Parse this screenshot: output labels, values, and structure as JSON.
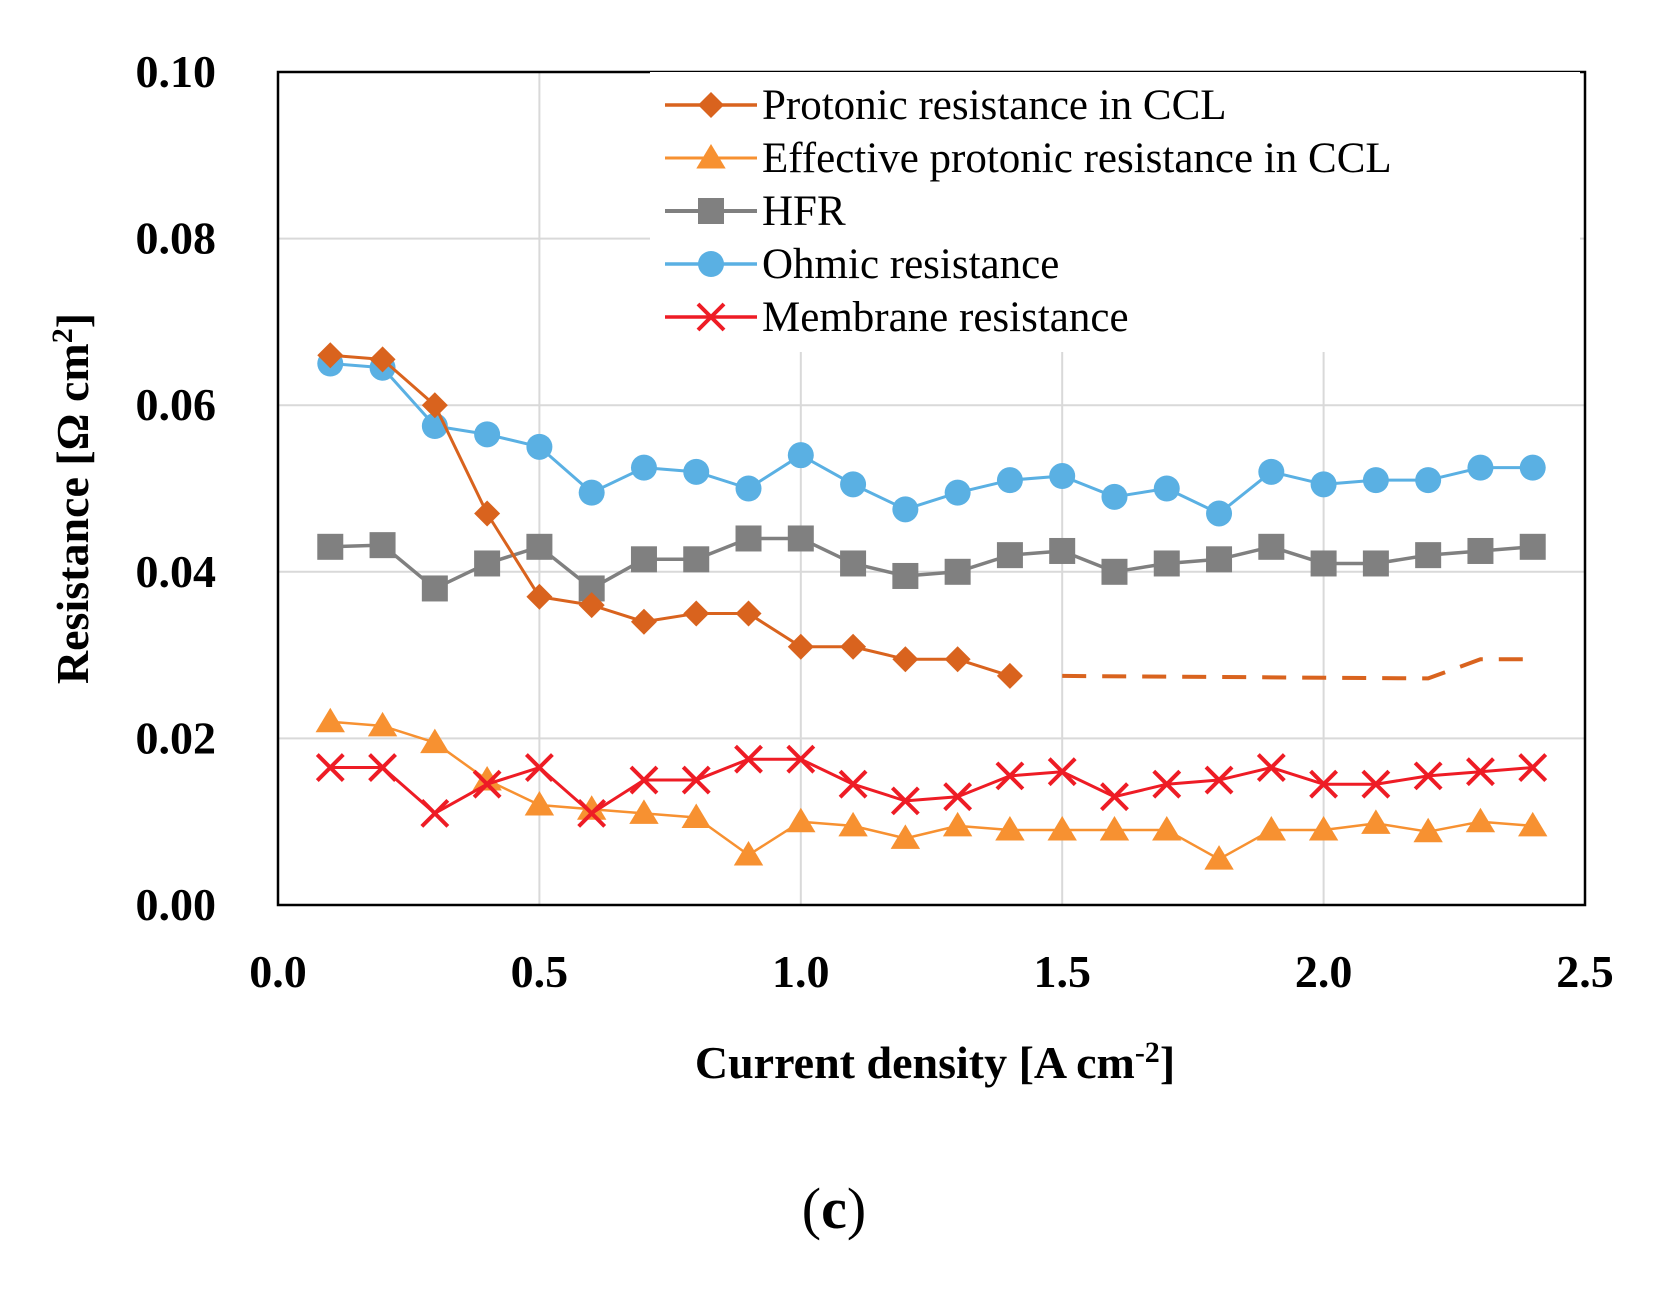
{
  "chart_data": {
    "type": "line",
    "panel_label": "c",
    "xlabel": "Current density [A cm",
    "xlabel_sup": "-2",
    "xlabel_end": "]",
    "ylabel": "Resistance [Ω cm",
    "ylabel_sup": "2",
    "ylabel_end": "]",
    "xlim": [
      0.0,
      2.5
    ],
    "ylim": [
      0.0,
      0.1
    ],
    "xticks": [
      "0.0",
      "0.5",
      "1.0",
      "1.5",
      "2.0",
      "2.5"
    ],
    "yticks": [
      "0.00",
      "0.02",
      "0.04",
      "0.06",
      "0.08",
      "0.10"
    ],
    "x": [
      0.1,
      0.2,
      0.3,
      0.4,
      0.5,
      0.6,
      0.7,
      0.8,
      0.9,
      1.0,
      1.1,
      1.2,
      1.3,
      1.4,
      1.5,
      1.6,
      1.7,
      1.8,
      1.9,
      2.0,
      2.1,
      2.2,
      2.3,
      2.4
    ],
    "legend_position": "top-right",
    "grid": true,
    "series": [
      {
        "name": "Protonic resistance in CCL",
        "color": "#D9631E",
        "marker": "diamond",
        "x": [
          0.1,
          0.2,
          0.3,
          0.4,
          0.5,
          0.6,
          0.7,
          0.8,
          0.9,
          1.0,
          1.1,
          1.2,
          1.3,
          1.4
        ],
        "values": [
          0.066,
          0.0655,
          0.06,
          0.047,
          0.037,
          0.036,
          0.034,
          0.035,
          0.035,
          0.031,
          0.031,
          0.0295,
          0.0295,
          0.0275
        ],
        "dashed_extension": {
          "x": [
            1.5,
            2.2,
            2.3,
            2.4
          ],
          "values": [
            0.0275,
            0.0272,
            0.0295,
            0.0295
          ]
        }
      },
      {
        "name": "Effective protonic resistance in CCL",
        "color": "#F79131",
        "marker": "triangle",
        "x": [
          0.1,
          0.2,
          0.3,
          0.4,
          0.5,
          0.6,
          0.7,
          0.8,
          0.9,
          1.0,
          1.1,
          1.2,
          1.3,
          1.4,
          1.5,
          1.6,
          1.7,
          1.8,
          1.9,
          2.0,
          2.1,
          2.2,
          2.3,
          2.4
        ],
        "values": [
          0.022,
          0.0215,
          0.0195,
          0.015,
          0.012,
          0.0115,
          0.011,
          0.0105,
          0.006,
          0.01,
          0.0095,
          0.008,
          0.0095,
          0.009,
          0.009,
          0.009,
          0.009,
          0.0055,
          0.009,
          0.009,
          0.0098,
          0.0088,
          0.01,
          0.0095
        ]
      },
      {
        "name": "HFR",
        "color": "#808080",
        "marker": "square",
        "x": [
          0.1,
          0.2,
          0.3,
          0.4,
          0.5,
          0.6,
          0.7,
          0.8,
          0.9,
          1.0,
          1.1,
          1.2,
          1.3,
          1.4,
          1.5,
          1.6,
          1.7,
          1.8,
          1.9,
          2.0,
          2.1,
          2.2,
          2.3,
          2.4
        ],
        "values": [
          0.043,
          0.0432,
          0.038,
          0.041,
          0.043,
          0.038,
          0.0415,
          0.0415,
          0.044,
          0.044,
          0.041,
          0.0395,
          0.04,
          0.042,
          0.0425,
          0.04,
          0.041,
          0.0415,
          0.043,
          0.041,
          0.041,
          0.042,
          0.0425,
          0.043
        ]
      },
      {
        "name": "Ohmic resistance",
        "color": "#5AB0E3",
        "marker": "circle",
        "x": [
          0.1,
          0.2,
          0.3,
          0.4,
          0.5,
          0.6,
          0.7,
          0.8,
          0.9,
          1.0,
          1.1,
          1.2,
          1.3,
          1.4,
          1.5,
          1.6,
          1.7,
          1.8,
          1.9,
          2.0,
          2.1,
          2.2,
          2.3,
          2.4
        ],
        "values": [
          0.065,
          0.0645,
          0.0575,
          0.0565,
          0.055,
          0.0495,
          0.0525,
          0.052,
          0.05,
          0.054,
          0.0505,
          0.0475,
          0.0495,
          0.051,
          0.0515,
          0.049,
          0.05,
          0.047,
          0.052,
          0.0505,
          0.051,
          0.051,
          0.0525,
          0.0525
        ]
      },
      {
        "name": "Membrane resistance",
        "color": "#EE1C25",
        "marker": "x",
        "x": [
          0.1,
          0.2,
          0.3,
          0.4,
          0.5,
          0.6,
          0.7,
          0.8,
          0.9,
          1.0,
          1.1,
          1.2,
          1.3,
          1.4,
          1.5,
          1.6,
          1.7,
          1.8,
          1.9,
          2.0,
          2.1,
          2.2,
          2.3,
          2.4
        ],
        "values": [
          0.0165,
          0.0165,
          0.011,
          0.0145,
          0.0165,
          0.011,
          0.015,
          0.015,
          0.0175,
          0.0175,
          0.0145,
          0.0125,
          0.013,
          0.0155,
          0.016,
          0.013,
          0.0145,
          0.015,
          0.0165,
          0.0145,
          0.0145,
          0.0155,
          0.016,
          0.0165
        ]
      }
    ]
  }
}
